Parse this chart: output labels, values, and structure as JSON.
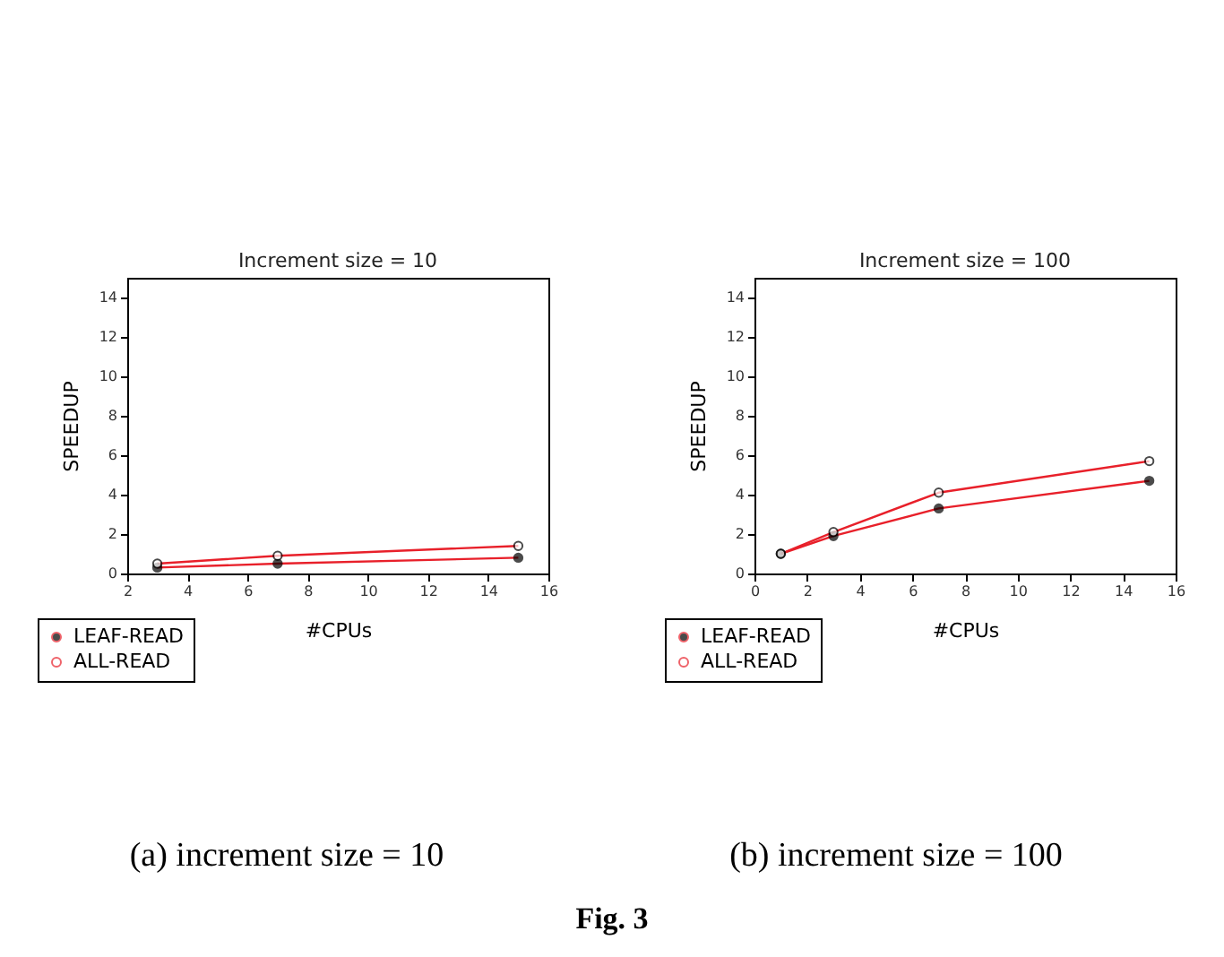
{
  "chart_data": [
    {
      "type": "line",
      "title": "Increment size  =  10",
      "xlabel": "#CPUs",
      "ylabel": "SPEEDUP",
      "x": [
        3,
        7,
        15
      ],
      "xlim": [
        2,
        16
      ],
      "xticks": [
        2,
        4,
        6,
        8,
        10,
        12,
        14,
        16
      ],
      "ylim": [
        0,
        15
      ],
      "yticks": [
        0,
        2,
        4,
        6,
        8,
        10,
        12,
        14
      ],
      "marker": "circle",
      "legend": "bottom left",
      "grid": false,
      "series": [
        {
          "name": "LEAF-READ",
          "color": "#e8202a",
          "values": [
            0.3,
            0.5,
            0.8
          ]
        },
        {
          "name": "ALL-READ",
          "color": "#e8202a",
          "values": [
            0.5,
            0.9,
            1.4
          ]
        }
      ],
      "annotations": [
        "(a) increment size = 10",
        "Fig. 3"
      ]
    },
    {
      "type": "line",
      "title": "Increment size  =  100",
      "xlabel": "#CPUs",
      "ylabel": "SPEEDUP",
      "x": [
        1,
        3,
        7,
        15
      ],
      "xlim": [
        0,
        16
      ],
      "xticks": [
        0,
        2,
        4,
        6,
        8,
        10,
        12,
        14,
        16
      ],
      "ylim": [
        0,
        15
      ],
      "yticks": [
        0,
        2,
        4,
        6,
        8,
        10,
        12,
        14
      ],
      "marker": "circle",
      "legend": "bottom left",
      "grid": false,
      "series": [
        {
          "name": "LEAF-READ",
          "color": "#e8202a",
          "values": [
            1,
            1.9,
            3.3,
            4.7
          ]
        },
        {
          "name": "ALL-READ",
          "color": "#e8202a",
          "values": [
            1,
            2.1,
            4.1,
            5.7
          ]
        }
      ],
      "annotations": [
        "(b) increment size = 100"
      ]
    }
  ]
}
